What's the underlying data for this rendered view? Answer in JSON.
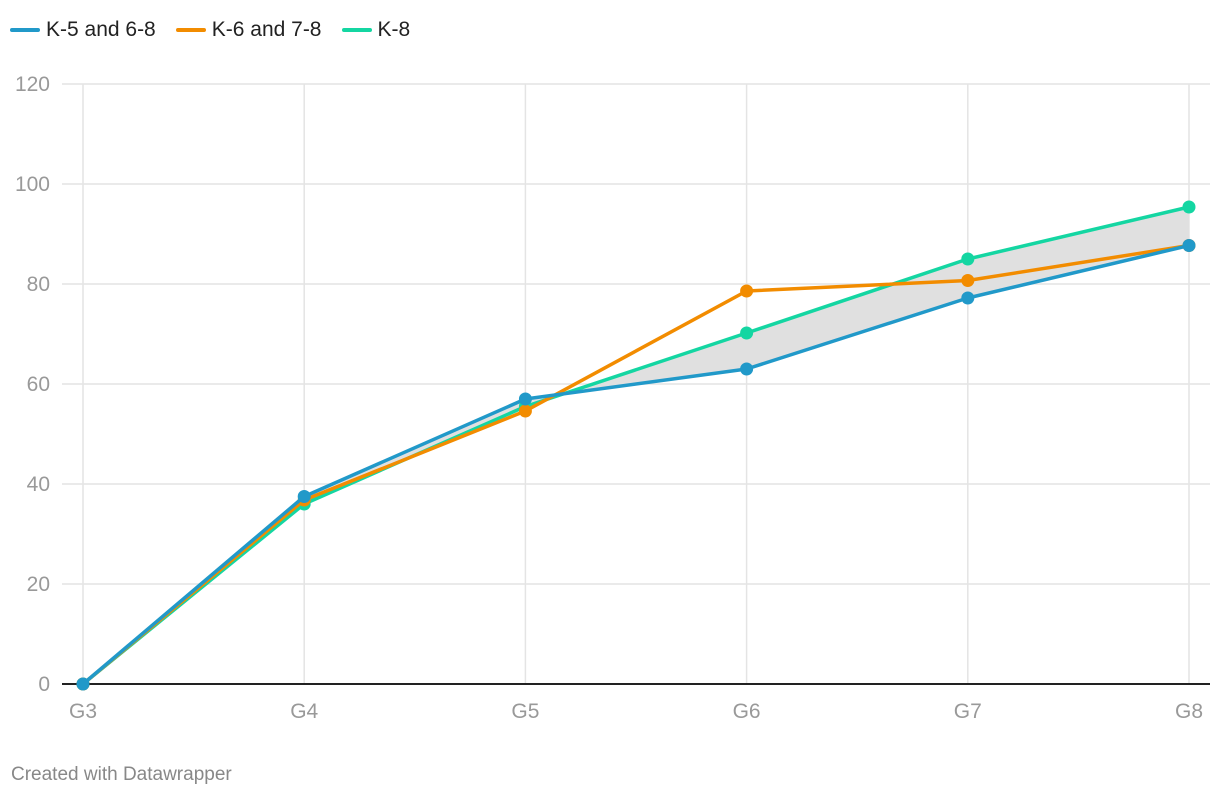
{
  "colors": {
    "K-5 and 6-8": "#2199c9",
    "K-6 and 7-8": "#f28c00",
    "K-8": "#14d6a2",
    "range_fill": "#e0e0e0",
    "grid": "#e4e4e4",
    "axis": "#222222"
  },
  "footer": "Created with Datawrapper",
  "chart_data": {
    "type": "line",
    "title": "",
    "xlabel": "",
    "ylabel": "",
    "categories": [
      "G3",
      "G4",
      "G5",
      "G6",
      "G7",
      "G8"
    ],
    "ylim": [
      0,
      120
    ],
    "yticks": [
      0,
      20,
      40,
      60,
      80,
      100,
      120
    ],
    "grid": true,
    "legend_position": "top-left",
    "shaded_range_between": [
      "K-5 and 6-8",
      "K-8"
    ],
    "series": [
      {
        "name": "K-5 and 6-8",
        "values": [
          0,
          37.5,
          57,
          63,
          77.2,
          87.7
        ]
      },
      {
        "name": "K-6 and 7-8",
        "values": [
          0,
          36.8,
          54.6,
          78.6,
          80.7,
          87.7
        ]
      },
      {
        "name": "K-8",
        "values": [
          0,
          36,
          55.5,
          70.2,
          85,
          95.4
        ]
      }
    ]
  }
}
